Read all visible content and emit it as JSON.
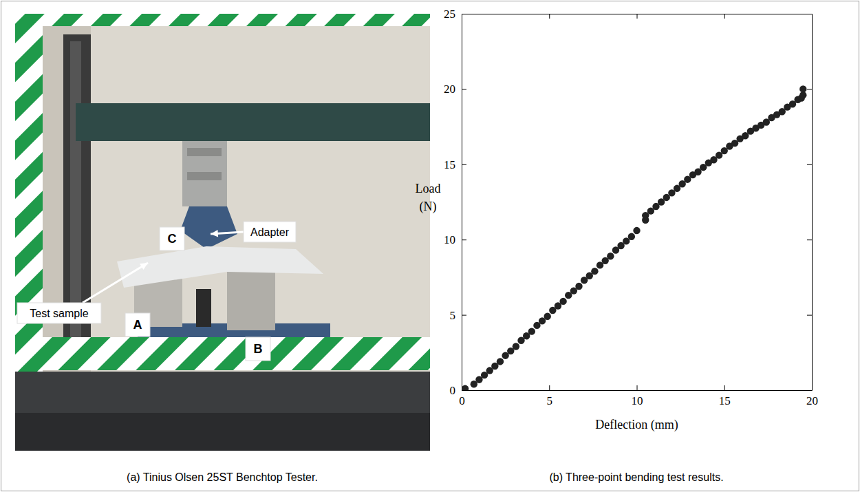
{
  "chart_data": {
    "type": "scatter",
    "x_label": "Deflection (mm)",
    "y_label": "Load (N)",
    "x": [
      0.2,
      0.7,
      1.0,
      1.3,
      1.6,
      1.9,
      2.2,
      2.5,
      2.8,
      3.1,
      3.4,
      3.7,
      4.0,
      4.3,
      4.6,
      4.9,
      5.2,
      5.5,
      5.8,
      6.1,
      6.4,
      6.7,
      7.0,
      7.3,
      7.6,
      7.9,
      8.2,
      8.5,
      8.8,
      9.1,
      9.4,
      9.7,
      10.0,
      10.5,
      10.5,
      10.8,
      11.1,
      11.4,
      11.7,
      12.0,
      12.3,
      12.6,
      12.9,
      13.2,
      13.5,
      13.8,
      14.1,
      14.4,
      14.7,
      15.0,
      15.3,
      15.6,
      15.9,
      16.2,
      16.5,
      16.8,
      17.1,
      17.4,
      17.7,
      18.0,
      18.3,
      18.6,
      18.9,
      19.2,
      19.4,
      19.5,
      19.5
    ],
    "values": [
      0.1,
      0.4,
      0.7,
      1.0,
      1.3,
      1.6,
      1.9,
      2.3,
      2.6,
      2.9,
      3.3,
      3.6,
      3.9,
      4.3,
      4.6,
      4.9,
      5.3,
      5.6,
      5.9,
      6.3,
      6.6,
      6.9,
      7.3,
      7.6,
      7.9,
      8.3,
      8.6,
      8.9,
      9.3,
      9.6,
      9.9,
      10.2,
      10.6,
      11.3,
      11.6,
      11.9,
      12.2,
      12.5,
      12.8,
      13.1,
      13.4,
      13.7,
      14.0,
      14.3,
      14.5,
      14.8,
      15.1,
      15.3,
      15.6,
      15.9,
      16.2,
      16.4,
      16.7,
      16.9,
      17.2,
      17.4,
      17.6,
      17.8,
      18.1,
      18.3,
      18.5,
      18.8,
      19.0,
      19.3,
      19.4,
      19.6,
      20.0
    ],
    "color": "#222222",
    "marker": "circle",
    "xlim": [
      0,
      20
    ],
    "xticks": [
      0,
      5,
      10,
      15,
      20
    ],
    "ylim": [
      0,
      25
    ],
    "yticks": [
      0,
      5,
      10,
      15,
      20,
      25
    ],
    "grid": false
  },
  "figure": {
    "panel_a": {
      "caption": "(a) Tinius Olsen 25ST Benchtop Tester.",
      "labels": [
        "C",
        "Adapter",
        "Test sample",
        "A",
        "B"
      ]
    },
    "panel_b": {
      "caption": "(b) Three-point bending test results."
    }
  }
}
